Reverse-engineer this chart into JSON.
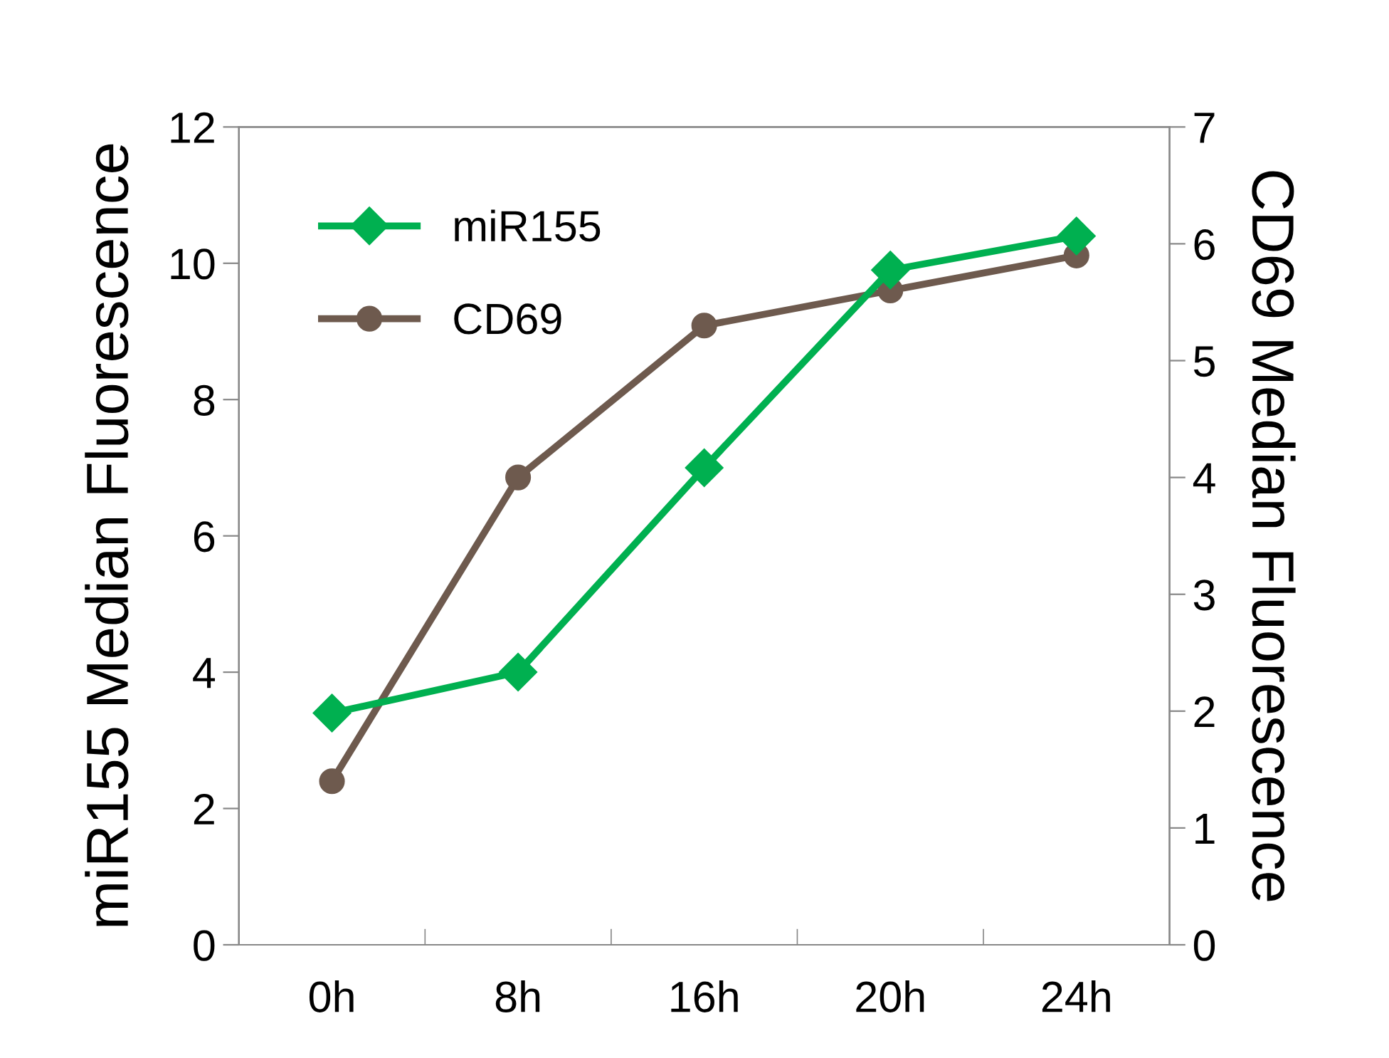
{
  "chart_data": {
    "type": "line",
    "ylabel": "miR155 Median Fluorescence",
    "y2label": "CD69 Median Fluorescence",
    "categories": [
      "0h",
      "8h",
      "16h",
      "20h",
      "24h"
    ],
    "series": [
      {
        "name": "miR155",
        "color": "#00b050",
        "marker": "diamond",
        "values": [
          3.4,
          4.0,
          7.0,
          9.9,
          10.4
        ]
      },
      {
        "name": "CD69",
        "color": "#6e5a4e",
        "marker": "circle",
        "axis": "y2",
        "values": [
          1.4,
          4.0,
          5.3,
          5.6,
          5.9
        ]
      }
    ],
    "ylim": [
      0,
      12
    ],
    "yticks": [
      0,
      2,
      4,
      6,
      8,
      10,
      12
    ],
    "y2lim": [
      0,
      7
    ],
    "y2ticks": [
      0,
      1,
      2,
      3,
      4,
      5,
      6,
      7
    ],
    "legend": "top left",
    "grid": false
  }
}
